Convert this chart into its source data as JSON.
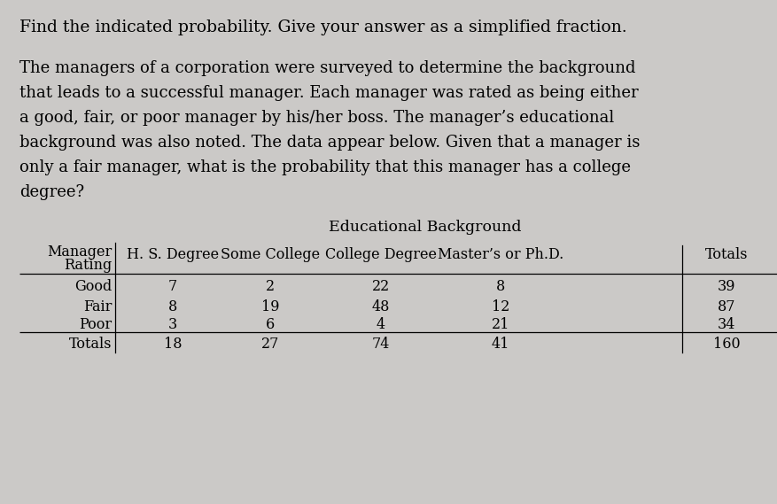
{
  "title_line": "Find the indicated probability. Give your answer as a simplified fraction.",
  "paragraph_lines": [
    "The managers of a corporation were surveyed to determine the background",
    "that leads to a successful manager. Each manager was rated as being either",
    "a good, fair, or poor manager by his/her boss. The manager’s educational",
    "background was also noted. The data appear below. Given that a manager is",
    "only a fair manager, what is the probability that this manager has a college",
    "degree?"
  ],
  "table_title": "Educational Background",
  "row_labels": [
    "Good",
    "Fair",
    "Poor",
    "Totals"
  ],
  "col_headers": [
    "H. S. Degree",
    "Some College",
    "College Degree",
    "Master’s or Ph.D.",
    "Totals"
  ],
  "data": [
    [
      "7",
      "2",
      "22",
      "8",
      "39"
    ],
    [
      "8",
      "19",
      "48",
      "12",
      "87"
    ],
    [
      "3",
      "6",
      "4",
      "21",
      "34"
    ],
    [
      "18",
      "27",
      "74",
      "41",
      "160"
    ]
  ],
  "bg_color": "#cbc9c7",
  "text_color": "#000000",
  "fs_title": 13.5,
  "fs_body": 13.0,
  "fs_table": 11.5
}
